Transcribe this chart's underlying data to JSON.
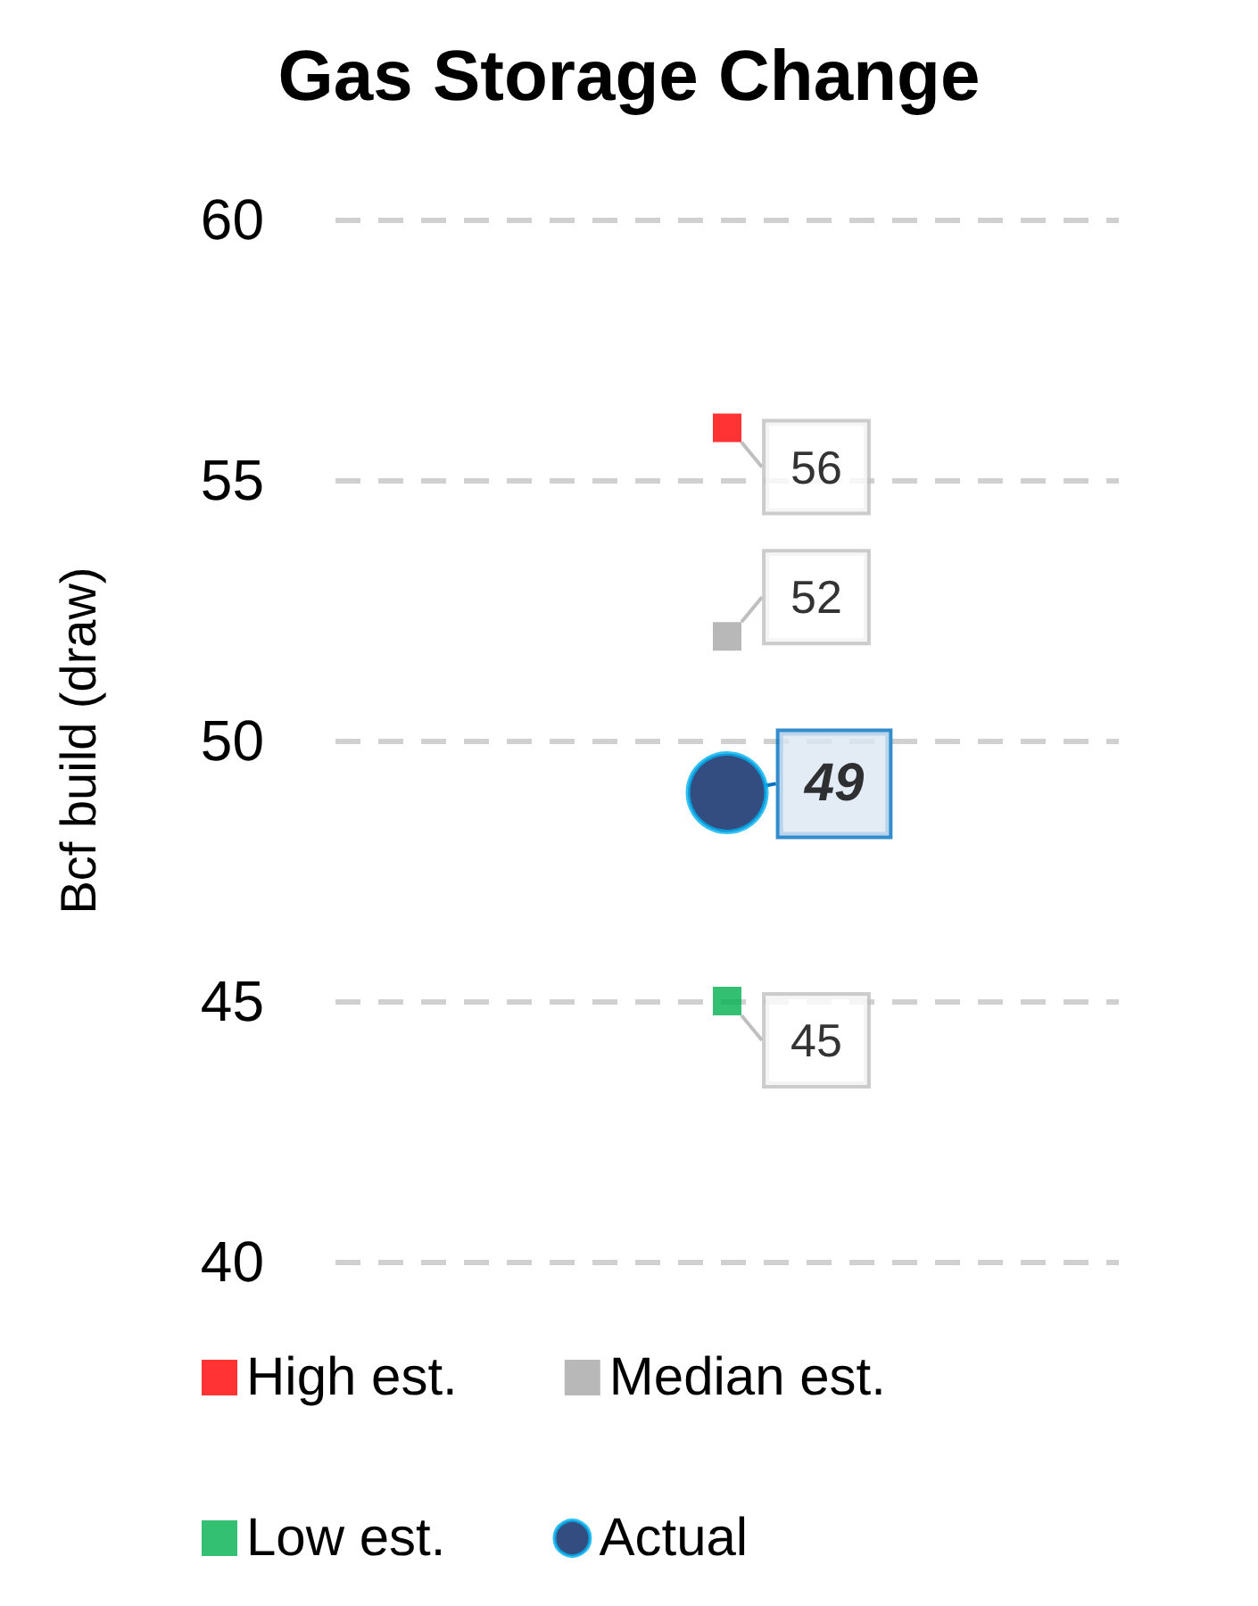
{
  "chart_data": {
    "type": "scatter",
    "title": "Gas Storage Change",
    "ylabel": "Bcf build (draw)",
    "categories": [
      null
    ],
    "series": [
      {
        "name": "High est.",
        "color": "#ff0000",
        "values": [
          56
        ],
        "marker": "square"
      },
      {
        "name": "Median est.",
        "color": "#a6a6a6",
        "values": [
          52
        ],
        "marker": "square"
      },
      {
        "name": "Low est.",
        "color": "#00b050",
        "values": [
          45
        ],
        "marker": "square"
      },
      {
        "name": "Actual",
        "color": "#002060",
        "values": [
          49
        ],
        "marker": "circle"
      }
    ],
    "ylim": [
      40,
      60
    ],
    "yticks": [
      40,
      45,
      50,
      55,
      60
    ],
    "grid": "y",
    "legend": "bottom",
    "data_labels": true
  }
}
